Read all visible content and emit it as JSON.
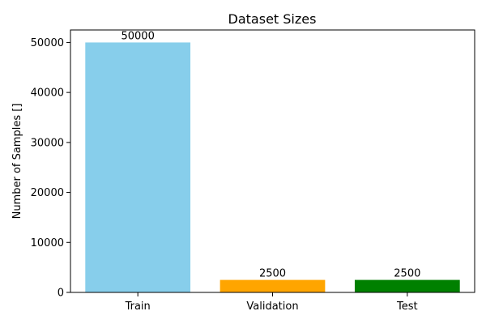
{
  "chart_data": {
    "type": "bar",
    "title": "Dataset Sizes",
    "xlabel": "",
    "ylabel": "Number of Samples []",
    "categories": [
      "Train",
      "Validation",
      "Test"
    ],
    "values": [
      50000,
      2500,
      2500
    ],
    "data_labels": [
      "50000",
      "2500",
      "2500"
    ],
    "colors": [
      "#87ceeb",
      "#ffa500",
      "#008000"
    ],
    "ylim": [
      0,
      52500
    ],
    "yticks": [
      0,
      10000,
      20000,
      30000,
      40000,
      50000
    ],
    "grid": false,
    "legend": "none"
  }
}
